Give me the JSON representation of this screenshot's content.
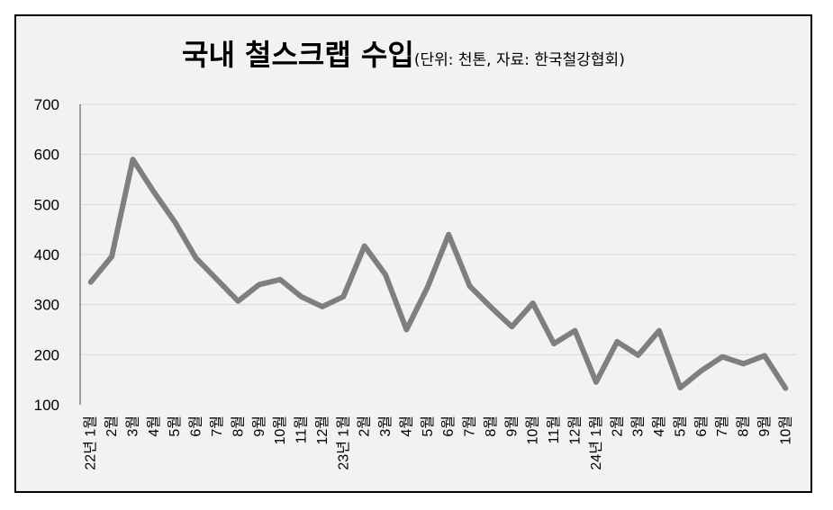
{
  "chart_data": {
    "type": "line",
    "title": "국내 철스크랩 수입",
    "subtitle": "(단위: 천톤, 자료: 한국철강협회)",
    "xlabel": "",
    "ylabel": "",
    "ylim": [
      100,
      700
    ],
    "yticks": [
      100,
      200,
      300,
      400,
      500,
      600,
      700
    ],
    "grid": true,
    "legend": "none",
    "categories": [
      "22년 1월",
      "2월",
      "3월",
      "4월",
      "5월",
      "6월",
      "7월",
      "8월",
      "9월",
      "10월",
      "11월",
      "12월",
      "23년 1월",
      "2월",
      "3월",
      "4월",
      "5월",
      "6월",
      "7월",
      "8월",
      "9월",
      "10월",
      "11월",
      "12월",
      "24년 1월",
      "2월",
      "3월",
      "4월",
      "5월",
      "6월",
      "7월",
      "8월",
      "9월",
      "10월"
    ],
    "series": [
      {
        "values": [
          345,
          396,
          590,
          525,
          465,
          393,
          350,
          307,
          340,
          350,
          316,
          296,
          316,
          417,
          360,
          250,
          335,
          440,
          337,
          295,
          256,
          303,
          222,
          248,
          145,
          226,
          199,
          248,
          134,
          168,
          196,
          182,
          198,
          133
        ],
        "color": "#7f7f7f"
      }
    ],
    "colors": {
      "plot_background": "#f2f2f2",
      "gridline": "#d9d9d9",
      "axis": "#7f7f7f"
    }
  }
}
